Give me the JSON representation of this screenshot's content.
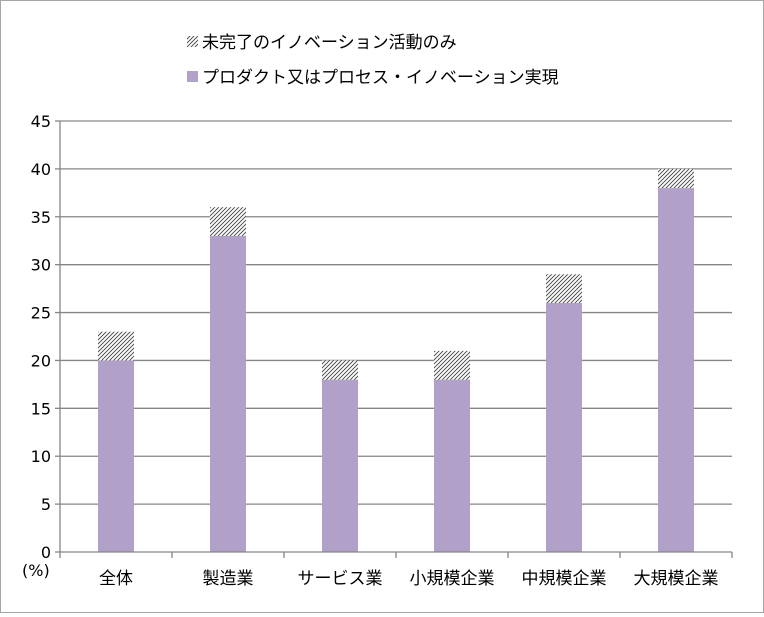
{
  "chart_data": {
    "type": "bar",
    "stacked": true,
    "categories": [
      "全体",
      "製造業",
      "サービス業",
      "小規模企業",
      "中規模企業",
      "大規模企業"
    ],
    "series": [
      {
        "name": "プロダクト又はプロセス・イノベーション実現",
        "values": [
          20,
          33,
          18,
          18,
          26,
          38
        ],
        "color": "#b1a0c7",
        "pattern": "solid"
      },
      {
        "name": "未完了のイノベーション活動のみ",
        "values": [
          3,
          3,
          2,
          3,
          3,
          2
        ],
        "color": "#404040",
        "pattern": "diagonal-hatch"
      }
    ],
    "ylim": [
      0,
      45
    ],
    "yticks": [
      0,
      5,
      10,
      15,
      20,
      25,
      30,
      35,
      40,
      45
    ],
    "yunit": "(%)",
    "grid": true,
    "legend_position": "top"
  }
}
